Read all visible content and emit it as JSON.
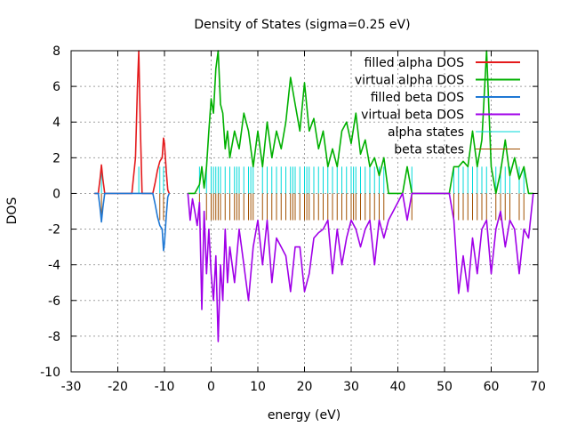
{
  "chart_data": {
    "type": "line",
    "title": "Density of States (sigma=0.25 eV)",
    "xlabel": "energy (eV)",
    "ylabel": "DOS",
    "xlim": [
      -30,
      70
    ],
    "ylim": [
      -10,
      8
    ],
    "xticks": [
      -30,
      -20,
      -10,
      0,
      10,
      20,
      30,
      40,
      50,
      60,
      70
    ],
    "yticks": [
      -10,
      -8,
      -6,
      -4,
      -2,
      0,
      2,
      4,
      6,
      8
    ],
    "grid": true,
    "legend_position": "top-right",
    "series": [
      {
        "name": "filled alpha DOS",
        "color": "#e41a1c",
        "x": [
          -25,
          -24.2,
          -23.8,
          -23.5,
          -23.2,
          -22.8,
          -22,
          -17,
          -16.2,
          -15.8,
          -15.5,
          -15.2,
          -14.8,
          -14,
          -12.5,
          -12,
          -11.5,
          -11,
          -10.5,
          -10.2,
          -10,
          -9.6,
          -9.3,
          -9
        ],
        "y": [
          0,
          0,
          0.8,
          1.6,
          0.8,
          0,
          0,
          0,
          2,
          6,
          8,
          4,
          0,
          0,
          0,
          0.6,
          1.3,
          1.8,
          2,
          3.1,
          2.8,
          1.2,
          0.2,
          0
        ]
      },
      {
        "name": "virtual alpha DOS",
        "color": "#00b000",
        "x": [
          -5,
          -3.5,
          -2.5,
          -2,
          -1.5,
          -1,
          -0.5,
          0,
          0.5,
          1,
          1.5,
          2,
          2.5,
          3,
          3.5,
          4,
          5,
          6,
          7,
          8,
          9,
          10,
          11,
          12,
          13,
          14,
          15,
          16,
          17,
          18,
          19,
          20,
          21,
          22,
          23,
          24,
          25,
          26,
          27,
          28,
          29,
          30,
          31,
          32,
          33,
          34,
          35,
          36,
          37,
          38,
          41,
          42,
          43,
          44,
          51,
          52,
          53,
          54,
          55,
          56,
          57,
          58,
          59,
          60,
          61,
          62,
          63,
          64,
          65,
          66,
          67,
          68,
          69
        ],
        "y": [
          0,
          0,
          0.5,
          1.5,
          0.3,
          1.5,
          3.5,
          5.3,
          4.5,
          7,
          8,
          5,
          4.5,
          2.5,
          3.5,
          2,
          3.5,
          2.5,
          4.5,
          3.5,
          1.5,
          3.5,
          1.5,
          4,
          2,
          3.5,
          2.5,
          4,
          6.5,
          5,
          3.5,
          6.2,
          3.5,
          4.2,
          2.5,
          3.5,
          1.5,
          2.5,
          1.5,
          3.5,
          4,
          2.8,
          4.5,
          2.2,
          3,
          1.5,
          2,
          1,
          2,
          0,
          0,
          1.5,
          0,
          0,
          0,
          1.5,
          1.5,
          1.8,
          1.5,
          3.5,
          1.5,
          3,
          8,
          1.5,
          0,
          1.2,
          3,
          1,
          2,
          0.8,
          1.5,
          0,
          0
        ]
      },
      {
        "name": "filled beta DOS",
        "color": "#1f78d4",
        "x": [
          -25,
          -24.2,
          -23.8,
          -23.5,
          -23.2,
          -22.8,
          -22,
          -12.5,
          -12,
          -11.5,
          -11,
          -10.5,
          -10.2,
          -10,
          -9.6,
          -9.3,
          -9
        ],
        "y": [
          0,
          0,
          -0.8,
          -1.6,
          -0.8,
          0,
          0,
          0,
          -0.6,
          -1.3,
          -1.8,
          -2,
          -3.2,
          -2.8,
          -1.2,
          -0.2,
          0
        ]
      },
      {
        "name": "virtual beta DOS",
        "color": "#a000e8",
        "x": [
          -5,
          -4.5,
          -4,
          -3.5,
          -3,
          -2.5,
          -2,
          -1.5,
          -1,
          -0.5,
          0,
          0.5,
          1,
          1.5,
          2,
          2.5,
          3,
          3.5,
          4,
          5,
          6,
          7,
          8,
          9,
          10,
          11,
          12,
          13,
          14,
          15,
          16,
          17,
          18,
          19,
          20,
          21,
          22,
          23,
          24,
          25,
          26,
          27,
          28,
          29,
          30,
          31,
          32,
          33,
          34,
          35,
          36,
          37,
          38,
          41,
          42,
          43,
          44,
          51,
          52,
          53,
          54,
          55,
          56,
          57,
          58,
          59,
          60,
          61,
          62,
          63,
          64,
          65,
          66,
          67,
          68,
          69
        ],
        "y": [
          0,
          -1.5,
          -0.3,
          -1,
          -1.8,
          -0.5,
          -6.5,
          -1,
          -4.5,
          -2,
          -4.5,
          -6,
          -3.5,
          -8.3,
          -4,
          -6,
          -2,
          -5,
          -3,
          -5,
          -2,
          -4,
          -6,
          -3,
          -1.5,
          -4,
          -1.5,
          -5,
          -2.5,
          -3,
          -3.5,
          -5.5,
          -3,
          -3,
          -5.5,
          -4.5,
          -2.5,
          -2.2,
          -2,
          -1.5,
          -4.5,
          -2,
          -4,
          -2.5,
          -1.5,
          -2,
          -3,
          -2,
          -1.5,
          -4,
          -1.5,
          -2.5,
          -1.5,
          0,
          -1.5,
          0,
          0,
          0,
          -1.5,
          -5.6,
          -3.5,
          -5.5,
          -2.5,
          -4.5,
          -2,
          -1.5,
          -4.5,
          -2,
          -1,
          -3,
          -1.5,
          -2,
          -4.5,
          -2,
          -2.5,
          0
        ]
      }
    ],
    "state_sticks": [
      {
        "name": "alpha states",
        "color": "#00d8d8",
        "height": 1.5,
        "x": [
          -23.5,
          -15.5,
          -11,
          -10.2,
          -2.5,
          -1,
          0,
          0.5,
          1,
          1.5,
          2,
          3,
          4,
          5,
          5.5,
          6,
          7,
          8,
          8.5,
          9,
          11,
          12,
          13,
          14,
          15,
          16,
          17,
          17.5,
          18,
          19,
          20,
          20.5,
          21,
          22,
          23,
          24,
          25,
          26,
          27,
          28,
          29,
          30,
          30.5,
          31,
          32,
          33,
          34,
          35,
          36,
          37,
          43,
          52,
          53,
          54,
          55,
          56,
          57,
          58,
          59,
          61,
          62,
          63,
          64,
          66,
          67
        ]
      },
      {
        "name": "beta states",
        "color": "#a05000",
        "height": -1.5,
        "x": [
          -23.5,
          -11,
          -10.2,
          -2.5,
          -1,
          0,
          0.5,
          1,
          1.5,
          2,
          3,
          4,
          5,
          5.5,
          6,
          7,
          8,
          8.5,
          9,
          11,
          12,
          13,
          14,
          15,
          16,
          17,
          17.5,
          18,
          19,
          20,
          20.5,
          21,
          22,
          23,
          24,
          25,
          26,
          27,
          28,
          29,
          30,
          30.5,
          31,
          32,
          33,
          34,
          35,
          36,
          37,
          43,
          52,
          53,
          54,
          55,
          56,
          57,
          58,
          59,
          61,
          62,
          63,
          64,
          66,
          67
        ]
      }
    ]
  }
}
